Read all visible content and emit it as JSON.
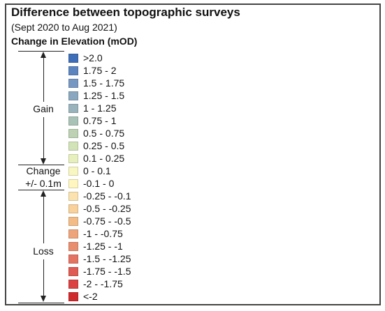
{
  "title": "Difference between topographic surveys",
  "subtitle": "(Sept 2020 to Aug 2021)",
  "heading": "Change in Elevation (mOD)",
  "groups": {
    "gain": "Gain",
    "change_line1": "Change",
    "change_line2": "+/- 0.1m",
    "loss": "Loss"
  },
  "legend": [
    {
      "label": ">2.0",
      "color": "#3f6eb8"
    },
    {
      "label": "1.75 - 2",
      "color": "#5c84bf"
    },
    {
      "label": "1.5 - 1.75",
      "color": "#7797c3"
    },
    {
      "label": "1.25 - 1.5",
      "color": "#8aa7c0"
    },
    {
      "label": "1 - 1.25",
      "color": "#99b3bc"
    },
    {
      "label": "0.75 - 1",
      "color": "#a9c2b7"
    },
    {
      "label": "0.5 - 0.75",
      "color": "#bcd2b3"
    },
    {
      "label": "0.25 - 0.5",
      "color": "#d2e3b8"
    },
    {
      "label": "0.1 - 0.25",
      "color": "#e7efbd"
    },
    {
      "label": "0 - 0.1",
      "color": "#f8f6c1"
    },
    {
      "label": "-0.1 - 0",
      "color": "#fff7bf"
    },
    {
      "label": "-0.25 - -0.1",
      "color": "#fbe3b0"
    },
    {
      "label": "-0.5 - -0.25",
      "color": "#f8d19b"
    },
    {
      "label": "-0.75 - -0.5",
      "color": "#f3bc87"
    },
    {
      "label": "-1 - -0.75",
      "color": "#eea47a"
    },
    {
      "label": "-1.25 - -1",
      "color": "#e98d6f"
    },
    {
      "label": "-1.5 - -1.25",
      "color": "#e47361"
    },
    {
      "label": "-1.75 - -1.5",
      "color": "#df5a52"
    },
    {
      "label": "-2 - -1.75",
      "color": "#da4140"
    },
    {
      "label": "<-2",
      "color": "#cf2a2c"
    }
  ]
}
